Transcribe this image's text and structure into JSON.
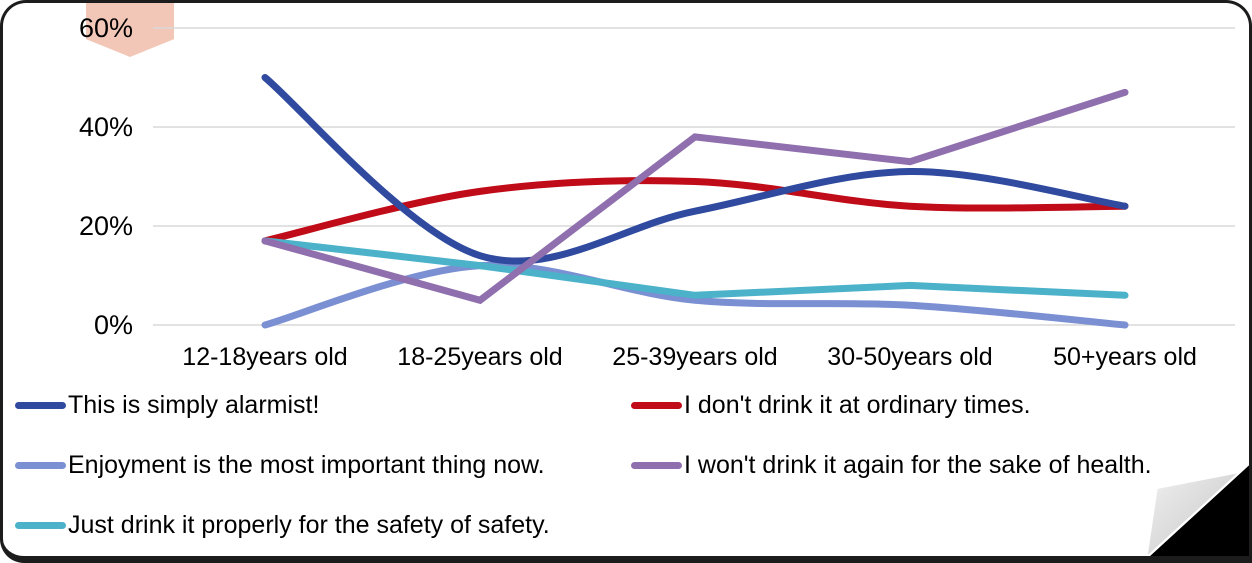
{
  "chart_data": {
    "type": "line",
    "title": "",
    "categories": [
      "12-18years old",
      "18-25years old",
      "25-39years old",
      "30-50years old",
      "50+years old"
    ],
    "y_ticks": [
      {
        "label": "0%",
        "value": 0
      },
      {
        "label": "20%",
        "value": 20
      },
      {
        "label": "40%",
        "value": 40
      },
      {
        "label": "60%",
        "value": 60
      }
    ],
    "ylim": [
      0,
      60
    ],
    "grid": true,
    "legend_position": "bottom",
    "series": [
      {
        "name": "This is simply alarmist!",
        "color": "#2f4a9e",
        "smooth": true,
        "values": [
          50,
          14,
          23,
          31,
          24
        ]
      },
      {
        "name": "I don't drink it at ordinary times.",
        "color": "#c00b18",
        "smooth": true,
        "values": [
          17,
          27,
          29,
          24,
          24
        ]
      },
      {
        "name": "Enjoyment is the most important thing now.",
        "color": "#7b8fd3",
        "smooth": true,
        "values": [
          0,
          12,
          5,
          4,
          0
        ]
      },
      {
        "name": "I won't drink it again for the sake of health.",
        "color": "#8f6fad",
        "smooth": false,
        "values": [
          17,
          5,
          38,
          33,
          47
        ]
      },
      {
        "name": "Just drink it properly for the safety of safety.",
        "color": "#4bb2c9",
        "smooth": false,
        "values": [
          17,
          12,
          6,
          8,
          6
        ]
      }
    ],
    "annotation": {
      "shape": "down-arrow",
      "color": "#f2c7b8",
      "attached_to": "60%"
    }
  },
  "decor": {
    "gridline_color": "#d9d9d9",
    "page_curl": "bottom-right"
  }
}
